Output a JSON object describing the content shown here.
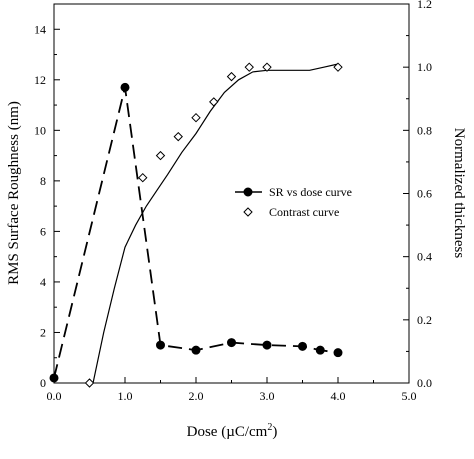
{
  "chart_data": {
    "type": "scatter",
    "xlabel": "Dose (µC/cm",
    "xlabel_sup": "2",
    "xlabel_close": ")",
    "ylabel_left": "RMS Surface Roughness (nm)",
    "ylabel_right": "Normalized thickness",
    "xlim": [
      0.0,
      5.0
    ],
    "ylim_left": [
      0,
      15
    ],
    "ylim_right": [
      0.0,
      1.2
    ],
    "x_ticks": [
      "0.0",
      "1.0",
      "2.0",
      "3.0",
      "4.0",
      "5.0"
    ],
    "y_left_ticks": [
      "0",
      "2",
      "4",
      "6",
      "8",
      "10",
      "12",
      "14"
    ],
    "y_right_ticks": [
      "0.0",
      "0.2",
      "0.4",
      "0.6",
      "0.8",
      "1.0",
      "1.2"
    ],
    "legend_position": "right",
    "series": [
      {
        "name": "SR vs dose curve",
        "axis": "left",
        "marker": "filled-circle",
        "line": "dashed",
        "x": [
          0.0,
          1.0,
          1.5,
          2.0,
          2.5,
          3.0,
          3.5,
          3.75,
          4.0
        ],
        "y": [
          0.2,
          11.7,
          1.5,
          1.3,
          1.6,
          1.5,
          1.45,
          1.3,
          1.2
        ]
      },
      {
        "name": "Contrast curve",
        "axis": "right",
        "marker": "open-diamond",
        "line": "none",
        "x": [
          0.5,
          1.25,
          1.5,
          1.75,
          2.0,
          2.25,
          2.5,
          2.75,
          3.0,
          4.0
        ],
        "y": [
          0.0,
          0.65,
          0.72,
          0.78,
          0.84,
          0.89,
          0.97,
          1.0,
          1.0,
          1.0
        ]
      }
    ],
    "fit_curve": {
      "axis": "right",
      "line": "solid",
      "x": [
        0.55,
        0.7,
        0.85,
        1.0,
        1.15,
        1.3,
        1.45,
        1.6,
        1.8,
        2.0,
        2.2,
        2.4,
        2.6,
        2.8,
        3.0,
        3.3,
        3.6,
        3.8,
        4.0
      ],
      "y": [
        0.0,
        0.16,
        0.3,
        0.43,
        0.5,
        0.56,
        0.61,
        0.66,
        0.73,
        0.79,
        0.86,
        0.92,
        0.96,
        0.985,
        0.99,
        0.99,
        0.99,
        1.0,
        1.01
      ]
    }
  }
}
